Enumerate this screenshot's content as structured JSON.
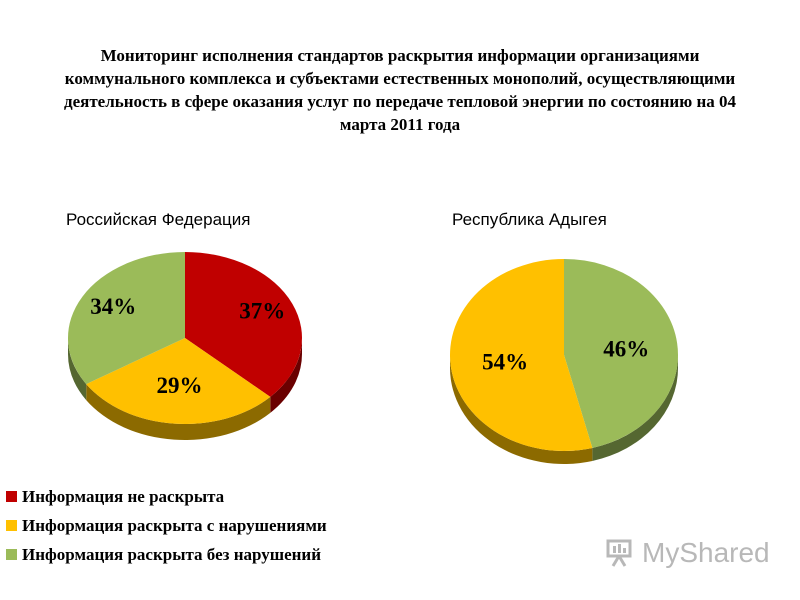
{
  "header": {
    "title": "Мониторинг исполнения стандартов раскрытия информации организациями коммунального комплекса и субъектами естественных монополий, осуществляющими деятельность в сфере оказания услуг по передаче тепловой энергии по состоянию на 04 марта 2011 года"
  },
  "legend": {
    "items": [
      {
        "label": "Информация не раскрыта",
        "color": "#c00000"
      },
      {
        "label": "Информация раскрыта с нарушениями",
        "color": "#ffc000"
      },
      {
        "label": "Информация раскрыта без нарушений",
        "color": "#9bbb59"
      }
    ]
  },
  "chart_data": [
    {
      "type": "pie",
      "title": "Российская Федерация",
      "categories": [
        "Информация не раскрыта",
        "Информация раскрыта с нарушениями",
        "Информация раскрыта без нарушений"
      ],
      "values": [
        37,
        29,
        34
      ],
      "labels": [
        "37%",
        "29%",
        "34%"
      ],
      "colors": [
        "#c00000",
        "#ffc000",
        "#9bbb59"
      ]
    },
    {
      "type": "pie",
      "title": "Республика Адыгея",
      "categories": [
        "Информация раскрыта без нарушений",
        "Информация раскрыта с нарушениями"
      ],
      "values": [
        46,
        54
      ],
      "labels": [
        "46%",
        "54%"
      ],
      "colors": [
        "#9bbb59",
        "#ffc000"
      ]
    }
  ],
  "watermark": {
    "text": "MyShared",
    "icon": "presentation-board-icon"
  }
}
